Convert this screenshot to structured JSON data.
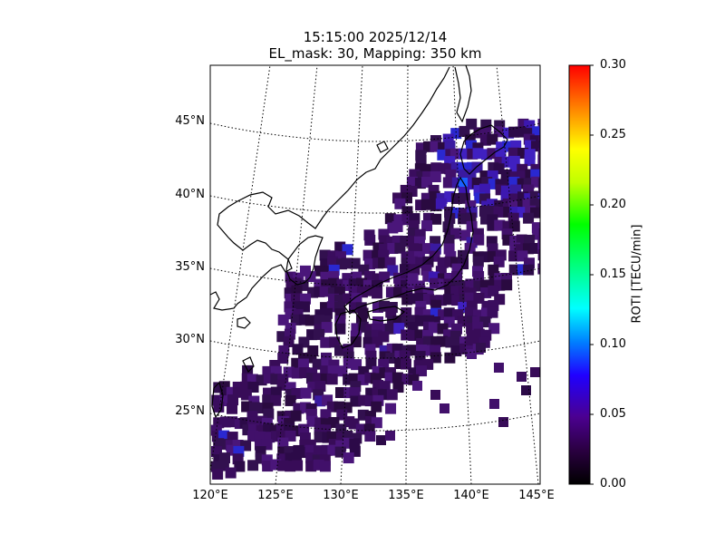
{
  "title": {
    "line1": "15:15:00 2025/12/14",
    "line2": "EL_mask: 30, Mapping: 350 km"
  },
  "map": {
    "lon_range": [
      120,
      145
    ],
    "lat_range": [
      20,
      49
    ],
    "lat_labels": [
      "45°N",
      "40°N",
      "35°N",
      "30°N",
      "25°N"
    ],
    "lon_labels": [
      "120°E",
      "125°E",
      "130°E",
      "135°E",
      "140°E",
      "145°E"
    ],
    "graticule": "dotted",
    "coastlines": "black"
  },
  "colorbar": {
    "label": "ROTI [TECU/min]",
    "min": 0.0,
    "max": 0.3,
    "ticks": [
      "0.30",
      "0.25",
      "0.20",
      "0.15",
      "0.10",
      "0.05",
      "0.00"
    ],
    "colormap": [
      "#000000",
      "#4a0070",
      "#5a00c8",
      "#0000ff",
      "#00ffff",
      "#00ff00",
      "#ffff00",
      "#ff8000",
      "#ff0000"
    ]
  },
  "chart_data": {
    "type": "heatmap",
    "title": "15:15:00 2025/12/14",
    "subtitle": "EL_mask: 30, Mapping: 350 km",
    "colorbar_label": "ROTI [TECU/min]",
    "value_range": [
      0.0,
      0.3
    ],
    "typical_value": 0.04,
    "elevated_region": "northern Japan (~40°N, 139°E) up to ~0.07",
    "region": "Japan and surrounding seas",
    "lon_range": [
      120,
      145
    ],
    "lat_range": [
      20,
      49
    ]
  }
}
